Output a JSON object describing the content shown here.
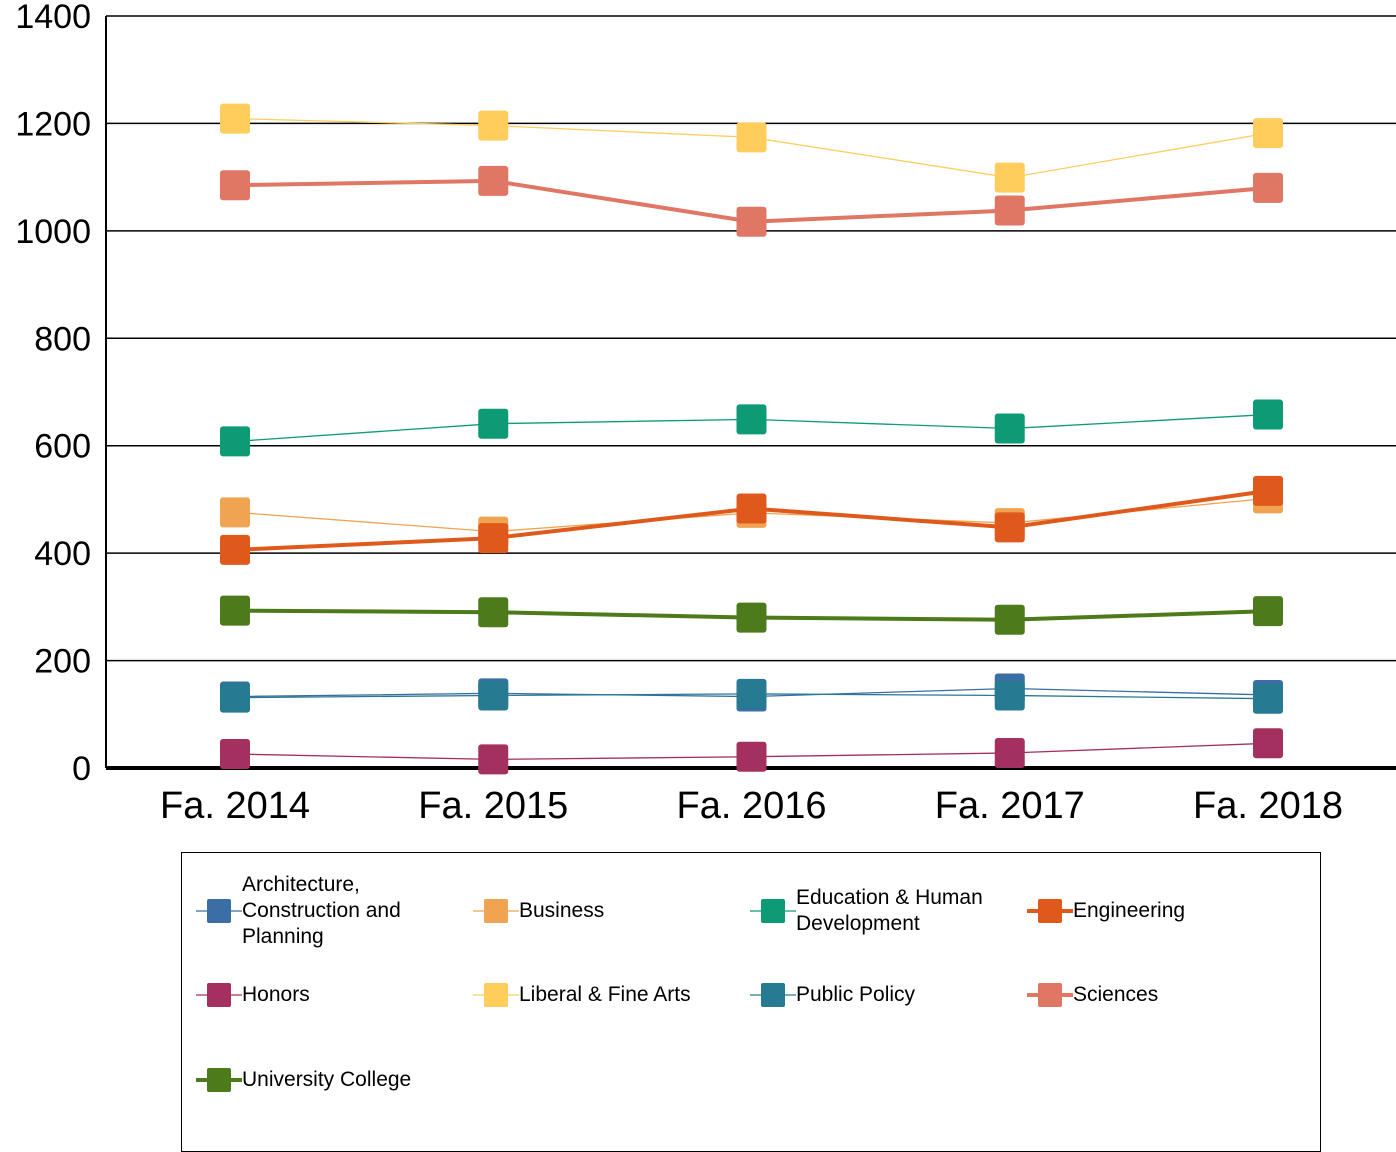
{
  "chart_data": {
    "type": "line",
    "title": "",
    "xlabel": "",
    "ylabel": "",
    "categories": [
      "Fa. 2014",
      "Fa. 2015",
      "Fa. 2016",
      "Fa. 2017",
      "Fa. 2018"
    ],
    "ylim": [
      0,
      1400
    ],
    "yticks": [
      "0",
      "200",
      "400",
      "600",
      "800",
      "1000",
      "1200",
      "1400"
    ],
    "grid": true,
    "legend_position": "bottom",
    "series": [
      {
        "name": "Architecture,\nConstruction and\nPlanning",
        "color": "#3a6ea5",
        "bold": false,
        "values": [
          133,
          139,
          133,
          148,
          136
        ]
      },
      {
        "name": "Business",
        "color": "#f0a350",
        "bold": false,
        "values": [
          476,
          440,
          475,
          456,
          502
        ]
      },
      {
        "name": "Education & Human\nDevelopment",
        "color": "#0d9b76",
        "bold": false,
        "values": [
          608,
          641,
          649,
          632,
          658
        ]
      },
      {
        "name": "Engineering",
        "color": "#e0591c",
        "bold": true,
        "values": [
          406,
          428,
          483,
          448,
          516
        ]
      },
      {
        "name": "Honors",
        "color": "#a3305f",
        "bold": false,
        "values": [
          26,
          16,
          21,
          28,
          46
        ]
      },
      {
        "name": "Liberal & Fine Arts",
        "color": "#ffcd5c",
        "bold": false,
        "values": [
          1209,
          1196,
          1174,
          1099,
          1182
        ]
      },
      {
        "name": "Public Policy",
        "color": "#267a92",
        "bold": false,
        "values": [
          131,
          135,
          138,
          135,
          129
        ]
      },
      {
        "name": "Sciences",
        "color": "#e07664",
        "bold": true,
        "values": [
          1085,
          1093,
          1017,
          1038,
          1080
        ]
      },
      {
        "name": "University College",
        "color": "#4d7a1a",
        "bold": true,
        "values": [
          293,
          290,
          280,
          276,
          292
        ]
      }
    ]
  }
}
